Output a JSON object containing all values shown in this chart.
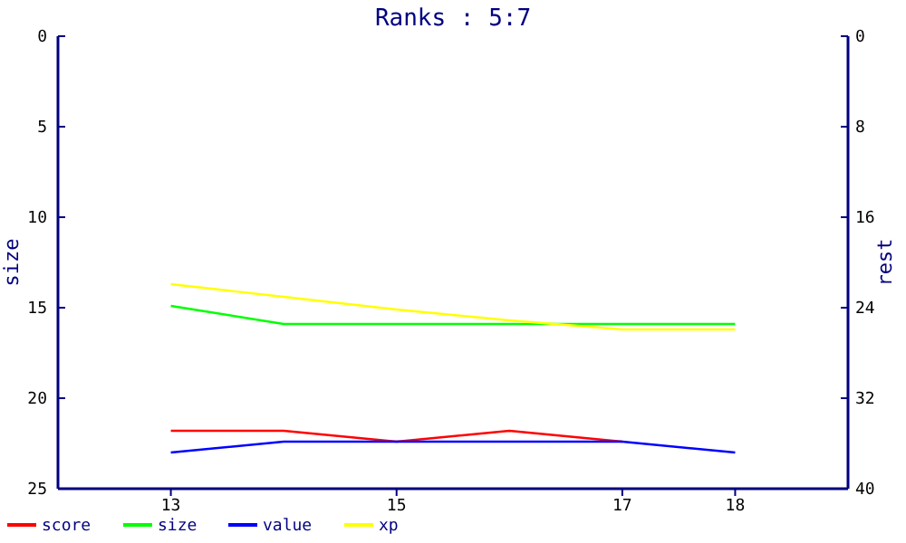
{
  "chart_data": {
    "type": "line",
    "title": "Ranks : 5:7",
    "ylabel": "size",
    "y2label": "rest",
    "x": [
      13,
      14,
      15,
      16,
      17,
      18
    ],
    "xlim": [
      12,
      19
    ],
    "xticks": [
      13,
      15,
      17,
      18
    ],
    "ylim": [
      25,
      0
    ],
    "yticks": [
      0,
      5,
      10,
      15,
      20,
      25
    ],
    "y2lim": [
      40,
      0
    ],
    "y2ticks": [
      0,
      8,
      16,
      24,
      32,
      40
    ],
    "legend": "bottom left",
    "grid": false,
    "series": [
      {
        "name": "score",
        "color": "#ff0000",
        "values": [
          21.8,
          21.8,
          22.4,
          21.8,
          22.4,
          null
        ]
      },
      {
        "name": "size",
        "color": "#00ff00",
        "values": [
          14.9,
          15.9,
          15.9,
          15.9,
          15.9,
          15.9
        ]
      },
      {
        "name": "value",
        "color": "#0000ff",
        "values": [
          23.0,
          22.4,
          22.4,
          22.4,
          22.4,
          23.0
        ]
      },
      {
        "name": "xp",
        "color": "#ffff00",
        "values": [
          13.7,
          14.4,
          15.1,
          15.7,
          16.2,
          16.2
        ]
      }
    ]
  }
}
